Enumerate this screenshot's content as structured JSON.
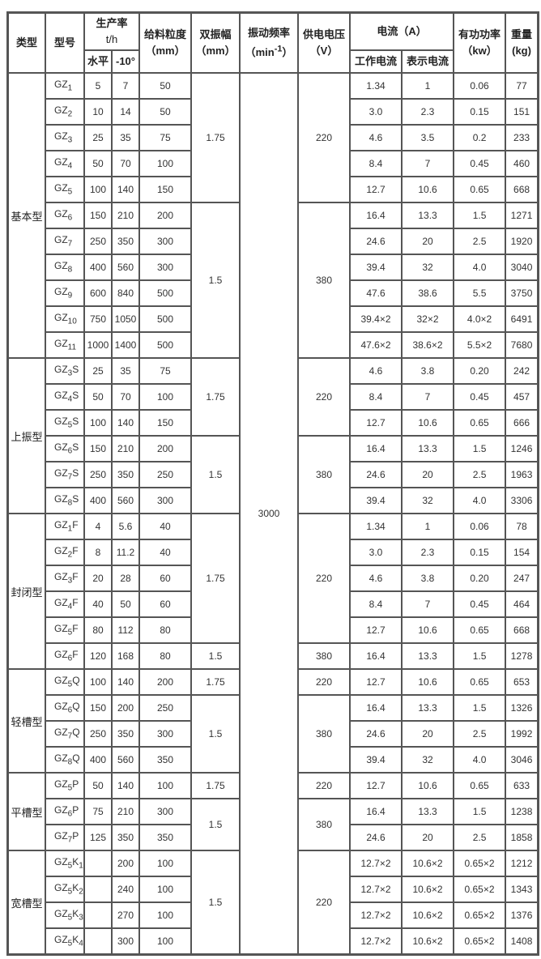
{
  "header": {
    "type": "类型",
    "model": "型号",
    "capacity": "生产率",
    "capacity_unit": "t/h",
    "horizontal": "水平",
    "tilt": "-10°",
    "feed_size": "给料粒度",
    "feed_size_unit": "（mm）",
    "amplitude": "双振幅",
    "amplitude_unit": "（mm）",
    "frequency": "振动频率",
    "frequency_unit": "（min-1）",
    "voltage": "供电电压",
    "voltage_unit": "（V）",
    "current": "电流（A）",
    "work_current": "工作电流",
    "indicated_current": "表示电流",
    "power": "有功功率",
    "power_unit": "（kw）",
    "weight": "重量",
    "weight_unit": "(kg)"
  },
  "frequency_value": "3000",
  "groups": [
    {
      "type": "基本型",
      "amplitude": [
        [
          "1.75",
          5
        ],
        [
          "1.5",
          6
        ]
      ],
      "voltage": [
        [
          "220",
          5
        ],
        [
          "380",
          6
        ]
      ],
      "rows": [
        [
          [
            "GZ",
            "1"
          ],
          "5",
          "7",
          "50",
          "1.34",
          "1",
          "0.06",
          "77"
        ],
        [
          [
            "GZ",
            "2"
          ],
          "10",
          "14",
          "50",
          "3.0",
          "2.3",
          "0.15",
          "151"
        ],
        [
          [
            "GZ",
            "3"
          ],
          "25",
          "35",
          "75",
          "4.6",
          "3.5",
          "0.2",
          "233"
        ],
        [
          [
            "GZ",
            "4"
          ],
          "50",
          "70",
          "100",
          "8.4",
          "7",
          "0.45",
          "460"
        ],
        [
          [
            "GZ",
            "5"
          ],
          "100",
          "140",
          "150",
          "12.7",
          "10.6",
          "0.65",
          "668"
        ],
        [
          [
            "GZ",
            "6"
          ],
          "150",
          "210",
          "200",
          "16.4",
          "13.3",
          "1.5",
          "1271"
        ],
        [
          [
            "GZ",
            "7"
          ],
          "250",
          "350",
          "300",
          "24.6",
          "20",
          "2.5",
          "1920"
        ],
        [
          [
            "GZ",
            "8"
          ],
          "400",
          "560",
          "300",
          "39.4",
          "32",
          "4.0",
          "3040"
        ],
        [
          [
            "GZ",
            "9"
          ],
          "600",
          "840",
          "500",
          "47.6",
          "38.6",
          "5.5",
          "3750"
        ],
        [
          [
            "GZ",
            "10"
          ],
          "750",
          "1050",
          "500",
          "39.4×2",
          "32×2",
          "4.0×2",
          "6491"
        ],
        [
          [
            "GZ",
            "11"
          ],
          "1000",
          "1400",
          "500",
          "47.6×2",
          "38.6×2",
          "5.5×2",
          "7680"
        ]
      ]
    },
    {
      "type": "上振型",
      "amplitude": [
        [
          "1.75",
          3
        ],
        [
          "1.5",
          3
        ]
      ],
      "voltage": [
        [
          "220",
          3
        ],
        [
          "380",
          3
        ]
      ],
      "rows": [
        [
          [
            "GZ",
            "3",
            "S"
          ],
          "25",
          "35",
          "75",
          "4.6",
          "3.8",
          "0.20",
          "242"
        ],
        [
          [
            "GZ",
            "4",
            "S"
          ],
          "50",
          "70",
          "100",
          "8.4",
          "7",
          "0.45",
          "457"
        ],
        [
          [
            "GZ",
            "5",
            "S"
          ],
          "100",
          "140",
          "150",
          "12.7",
          "10.6",
          "0.65",
          "666"
        ],
        [
          [
            "GZ",
            "6",
            "S"
          ],
          "150",
          "210",
          "200",
          "16.4",
          "13.3",
          "1.5",
          "1246"
        ],
        [
          [
            "GZ",
            "7",
            "S"
          ],
          "250",
          "350",
          "250",
          "24.6",
          "20",
          "2.5",
          "1963"
        ],
        [
          [
            "GZ",
            "8",
            "S"
          ],
          "400",
          "560",
          "300",
          "39.4",
          "32",
          "4.0",
          "3306"
        ]
      ]
    },
    {
      "type": "封闭型",
      "amplitude": [
        [
          "1.75",
          5
        ],
        [
          "1.5",
          1
        ]
      ],
      "voltage": [
        [
          "220",
          5
        ],
        [
          "380",
          1
        ]
      ],
      "rows": [
        [
          [
            "GZ",
            "1",
            "F"
          ],
          "4",
          "5.6",
          "40",
          "1.34",
          "1",
          "0.06",
          "78"
        ],
        [
          [
            "GZ",
            "2",
            "F"
          ],
          "8",
          "11.2",
          "40",
          "3.0",
          "2.3",
          "0.15",
          "154"
        ],
        [
          [
            "GZ",
            "3",
            "F"
          ],
          "20",
          "28",
          "60",
          "4.6",
          "3.8",
          "0.20",
          "247"
        ],
        [
          [
            "GZ",
            "4",
            "F"
          ],
          "40",
          "50",
          "60",
          "8.4",
          "7",
          "0.45",
          "464"
        ],
        [
          [
            "GZ",
            "5",
            "F"
          ],
          "80",
          "112",
          "80",
          "12.7",
          "10.6",
          "0.65",
          "668"
        ],
        [
          [
            "GZ",
            "6",
            "F"
          ],
          "120",
          "168",
          "80",
          "16.4",
          "13.3",
          "1.5",
          "1278"
        ]
      ]
    },
    {
      "type": "轻槽型",
      "amplitude": [
        [
          "1.75",
          1
        ],
        [
          "1.5",
          3
        ]
      ],
      "voltage": [
        [
          "220",
          1
        ],
        [
          "380",
          3
        ]
      ],
      "rows": [
        [
          [
            "GZ",
            "5",
            "Q"
          ],
          "100",
          "140",
          "200",
          "12.7",
          "10.6",
          "0.65",
          "653"
        ],
        [
          [
            "GZ",
            "6",
            "Q"
          ],
          "150",
          "200",
          "250",
          "16.4",
          "13.3",
          "1.5",
          "1326"
        ],
        [
          [
            "GZ",
            "7",
            "Q"
          ],
          "250",
          "350",
          "300",
          "24.6",
          "20",
          "2.5",
          "1992"
        ],
        [
          [
            "GZ",
            "8",
            "Q"
          ],
          "400",
          "560",
          "350",
          "39.4",
          "32",
          "4.0",
          "3046"
        ]
      ]
    },
    {
      "type": "平槽型",
      "amplitude": [
        [
          "1.75",
          1
        ],
        [
          "1.5",
          2
        ]
      ],
      "voltage": [
        [
          "220",
          1
        ],
        [
          "380",
          2
        ]
      ],
      "rows": [
        [
          [
            "GZ",
            "5",
            "P"
          ],
          "50",
          "140",
          "100",
          "12.7",
          "10.6",
          "0.65",
          "633"
        ],
        [
          [
            "GZ",
            "6",
            "P"
          ],
          "75",
          "210",
          "300",
          "16.4",
          "13.3",
          "1.5",
          "1238"
        ],
        [
          [
            "GZ",
            "7",
            "P"
          ],
          "125",
          "350",
          "350",
          "24.6",
          "20",
          "2.5",
          "1858"
        ]
      ]
    },
    {
      "type": "宽槽型",
      "amplitude": [
        [
          "1.5",
          4
        ]
      ],
      "voltage": [
        [
          "220",
          4
        ]
      ],
      "rows": [
        [
          [
            "GZ",
            "5",
            "K",
            "1"
          ],
          "",
          "200",
          "100",
          "12.7×2",
          "10.6×2",
          "0.65×2",
          "1212"
        ],
        [
          [
            "GZ",
            "5",
            "K",
            "2"
          ],
          "",
          "240",
          "100",
          "12.7×2",
          "10.6×2",
          "0.65×2",
          "1343"
        ],
        [
          [
            "GZ",
            "5",
            "K",
            "3"
          ],
          "",
          "270",
          "100",
          "12.7×2",
          "10.6×2",
          "0.65×2",
          "1376"
        ],
        [
          [
            "GZ",
            "5",
            "K",
            "4"
          ],
          "",
          "300",
          "100",
          "12.7×2",
          "10.6×2",
          "0.65×2",
          "1408"
        ]
      ]
    }
  ]
}
